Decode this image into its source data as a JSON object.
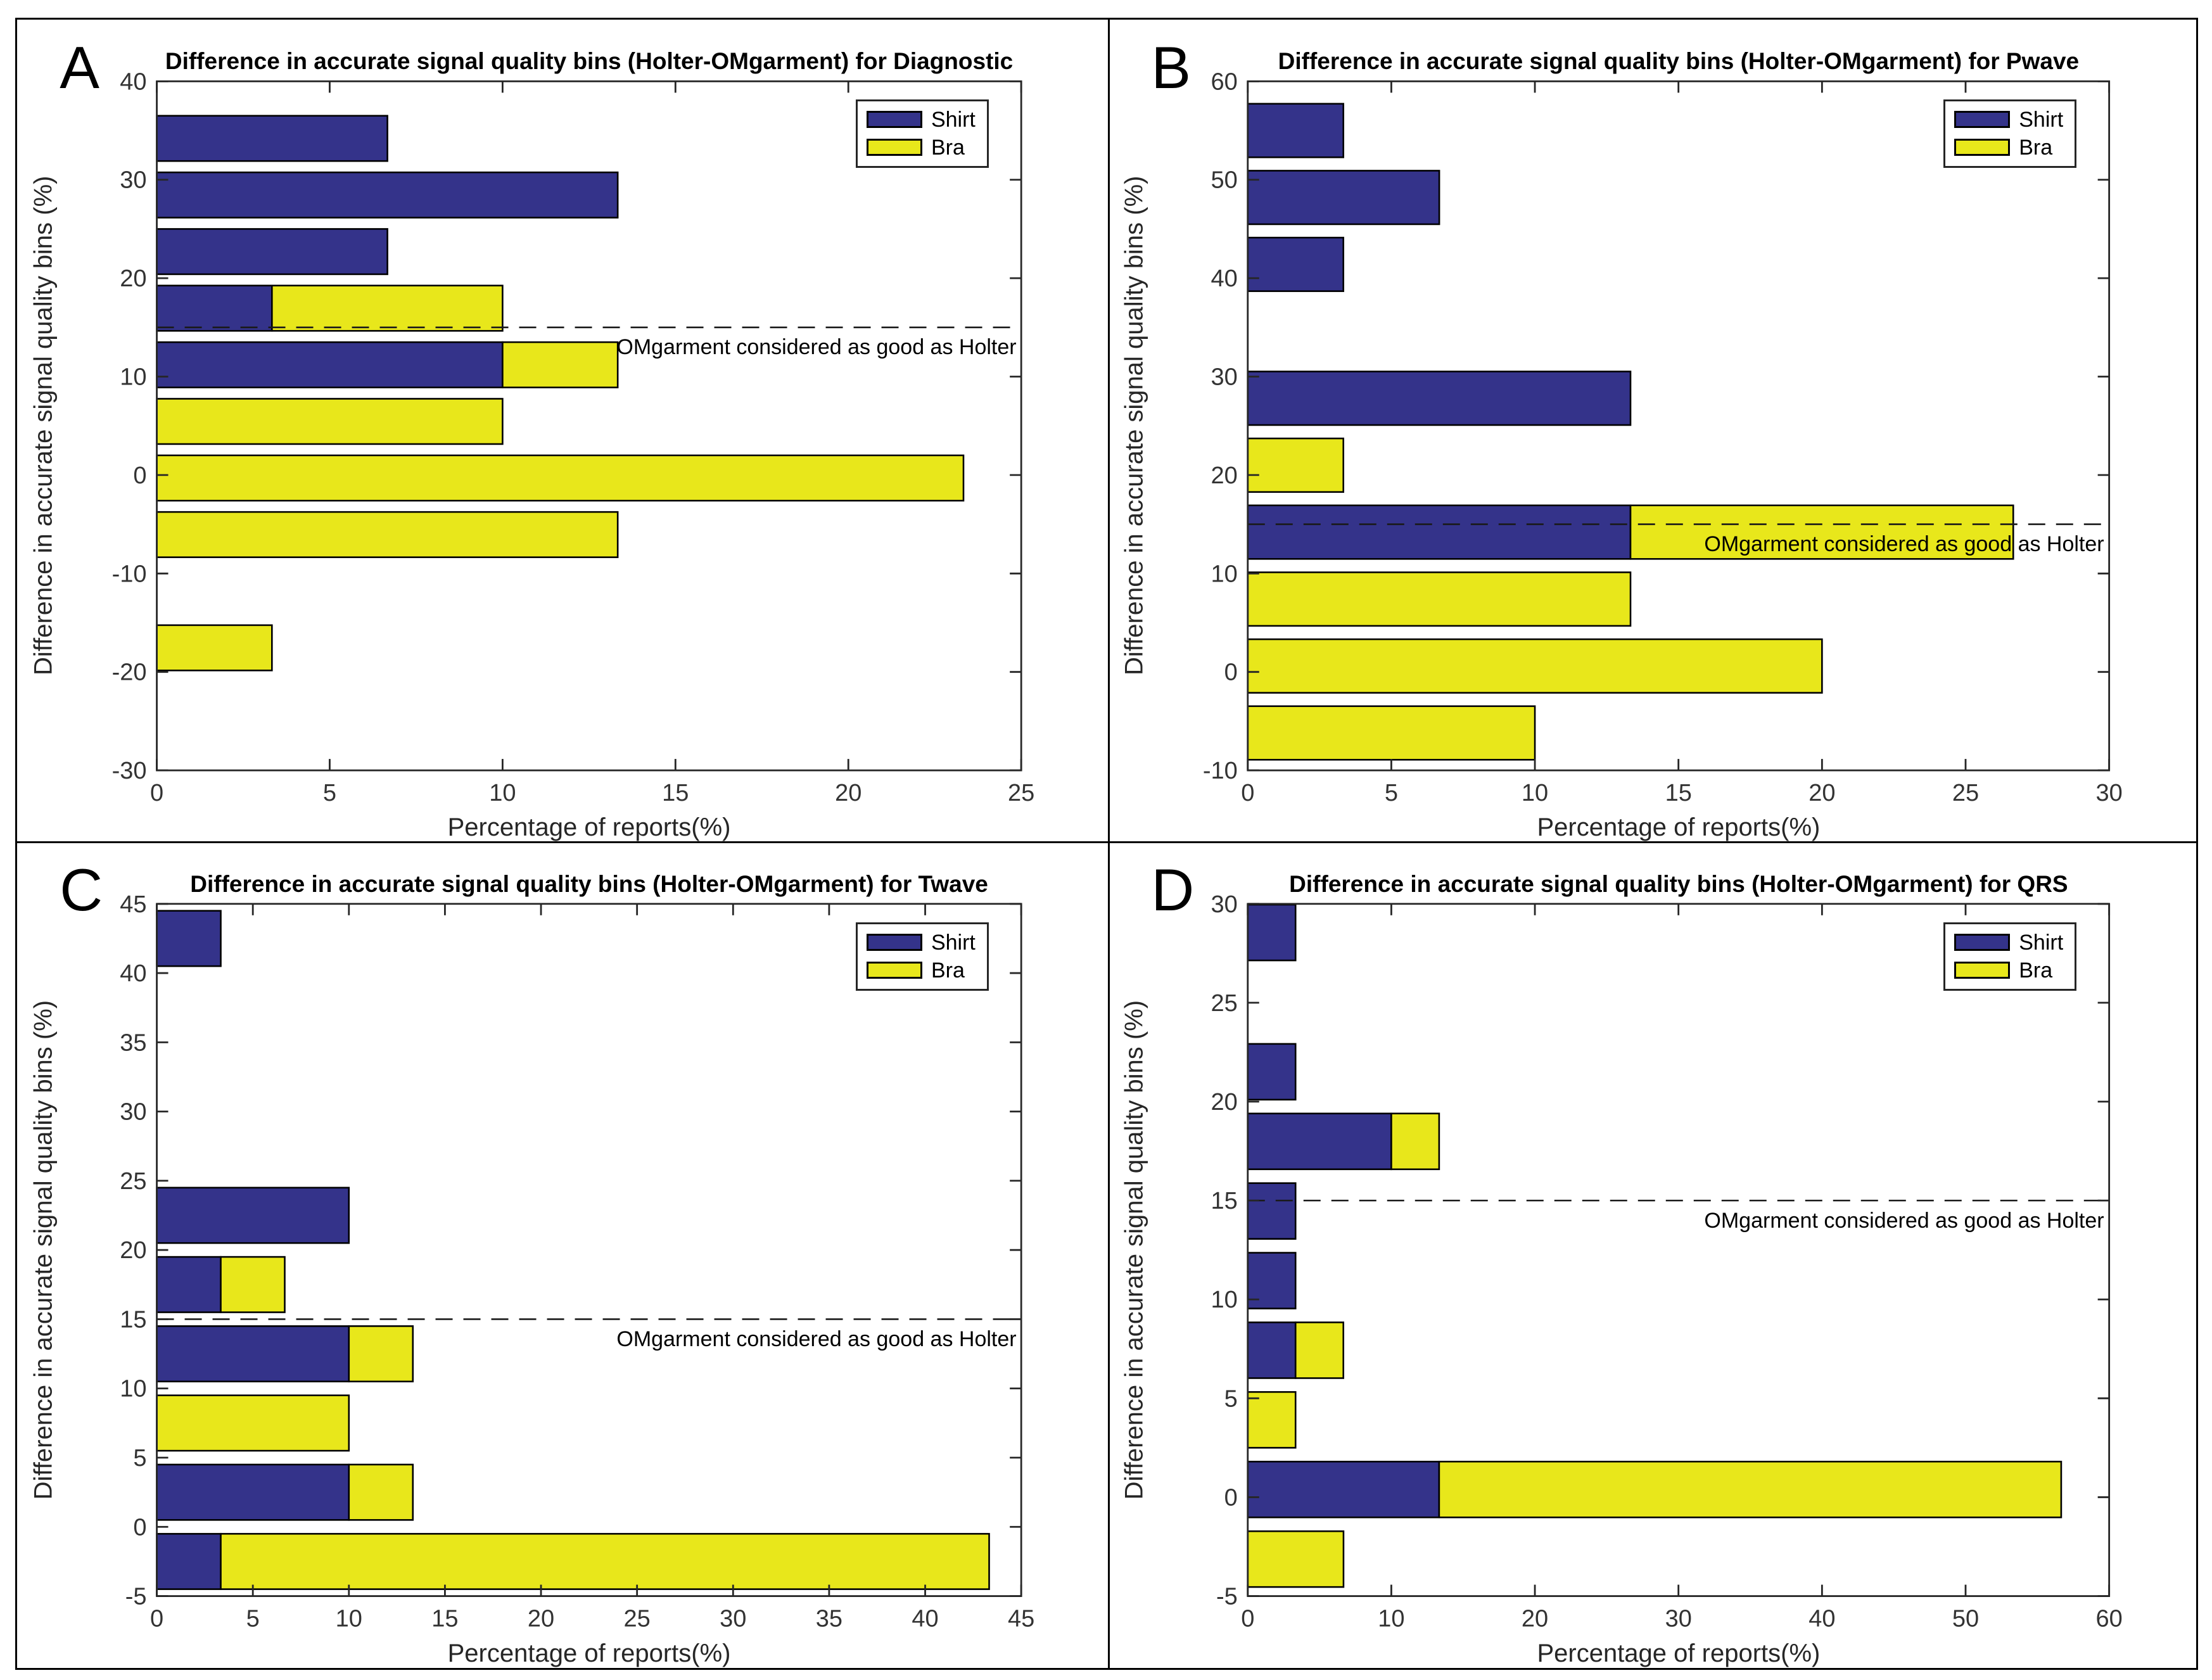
{
  "figure": {
    "background": "#ffffff",
    "outer_border": true,
    "layout": "2x2-panels"
  },
  "legend": {
    "shirt": "Shirt",
    "bra": "Bra",
    "position": "top-right-inside-plot"
  },
  "colors": {
    "shirt": "#34338A",
    "bra": "#E8E71B",
    "bar_edge": "#000000",
    "axis": "#262626",
    "tick_label": "#333333",
    "threshold_line": "#1a1a1a",
    "title_text": "#000000"
  },
  "chart_data": [
    {
      "panel": "A",
      "letter": "A",
      "type": "bar",
      "orientation": "horizontal",
      "grid": false,
      "title": "Difference in accurate signal quality bins (Holter-OMgarment) for Diagnostic",
      "xlabel": "Percentage of reports(%)",
      "ylabel": "Difference in accurate signal quality bins (%)",
      "xlim": [
        0,
        25
      ],
      "ylim": [
        -30,
        40
      ],
      "xticks": [
        0,
        5,
        10,
        15,
        20,
        25
      ],
      "yticks": [
        -30,
        -20,
        -10,
        0,
        10,
        20,
        30,
        40
      ],
      "bar_thickness": 4.6,
      "threshold": {
        "y": 15,
        "label": "OMgarment considered as good as Holter"
      },
      "series": [
        "Shirt",
        "Bra"
      ],
      "bars": [
        {
          "y": 34.2,
          "shirt": 6.67,
          "bra": 0
        },
        {
          "y": 28.45,
          "shirt": 13.33,
          "bra": 0
        },
        {
          "y": 22.7,
          "shirt": 6.67,
          "bra": 0
        },
        {
          "y": 16.95,
          "shirt": 3.33,
          "bra": 6.67
        },
        {
          "y": 11.2,
          "shirt": 10,
          "bra": 3.33
        },
        {
          "y": 5.45,
          "shirt": 0,
          "bra": 10
        },
        {
          "y": -0.3,
          "shirt": 0,
          "bra": 23.33
        },
        {
          "y": -6.05,
          "shirt": 0,
          "bra": 13.33
        },
        {
          "y": -17.55,
          "shirt": 0,
          "bra": 3.33
        }
      ]
    },
    {
      "panel": "B",
      "letter": "B",
      "type": "bar",
      "orientation": "horizontal",
      "grid": false,
      "title": "Difference in accurate signal quality bins (Holter-OMgarment) for Pwave",
      "xlabel": "Percentage of reports(%)",
      "ylabel": "Difference in accurate signal quality bins (%)",
      "xlim": [
        0,
        30
      ],
      "ylim": [
        -10,
        60
      ],
      "xticks": [
        0,
        5,
        10,
        15,
        20,
        25,
        30
      ],
      "yticks": [
        -10,
        0,
        10,
        20,
        30,
        40,
        50,
        60
      ],
      "bar_thickness": 5.44,
      "threshold": {
        "y": 15,
        "label": "OMgarment considered as good as Holter"
      },
      "series": [
        "Shirt",
        "Bra"
      ],
      "bars": [
        {
          "y": 55,
          "shirt": 3.33,
          "bra": 0
        },
        {
          "y": 48.2,
          "shirt": 6.67,
          "bra": 0
        },
        {
          "y": 41.4,
          "shirt": 3.33,
          "bra": 0
        },
        {
          "y": 27.8,
          "shirt": 13.33,
          "bra": 0
        },
        {
          "y": 21,
          "shirt": 0,
          "bra": 3.33
        },
        {
          "y": 14.2,
          "shirt": 13.33,
          "bra": 13.33
        },
        {
          "y": 7.4,
          "shirt": 0,
          "bra": 13.33
        },
        {
          "y": 0.6,
          "shirt": 0,
          "bra": 20
        },
        {
          "y": -6.2,
          "shirt": 0,
          "bra": 10
        }
      ]
    },
    {
      "panel": "C",
      "letter": "C",
      "type": "bar",
      "orientation": "horizontal",
      "grid": false,
      "title": "Difference in accurate signal quality bins (Holter-OMgarment) for Twave",
      "xlabel": "Percentage of reports(%)",
      "ylabel": "Difference in accurate signal quality bins (%)",
      "xlim": [
        0,
        45
      ],
      "ylim": [
        -5,
        45
      ],
      "xticks": [
        0,
        5,
        10,
        15,
        20,
        25,
        30,
        35,
        40,
        45
      ],
      "yticks": [
        -5,
        0,
        5,
        10,
        15,
        20,
        25,
        30,
        35,
        40,
        45
      ],
      "bar_thickness": 4,
      "threshold": {
        "y": 15,
        "label": "OMgarment considered as good as Holter"
      },
      "series": [
        "Shirt",
        "Bra"
      ],
      "bars": [
        {
          "y": 42.5,
          "shirt": 3.33,
          "bra": 0
        },
        {
          "y": 22.5,
          "shirt": 10,
          "bra": 0
        },
        {
          "y": 17.5,
          "shirt": 3.33,
          "bra": 3.33
        },
        {
          "y": 12.5,
          "shirt": 10,
          "bra": 3.33
        },
        {
          "y": 7.5,
          "shirt": 0,
          "bra": 10
        },
        {
          "y": 2.5,
          "shirt": 10,
          "bra": 3.33
        },
        {
          "y": -2.5,
          "shirt": 3.33,
          "bra": 40
        }
      ]
    },
    {
      "panel": "D",
      "letter": "D",
      "type": "bar",
      "orientation": "horizontal",
      "grid": false,
      "title": "Difference in accurate signal quality bins (Holter-OMgarment) for QRS",
      "xlabel": "Percentage of reports(%)",
      "ylabel": "Difference in accurate signal quality bins (%)",
      "xlim": [
        0,
        60
      ],
      "ylim": [
        -5,
        30
      ],
      "xticks": [
        0,
        10,
        20,
        30,
        40,
        50,
        60
      ],
      "yticks": [
        -5,
        0,
        5,
        10,
        15,
        20,
        25,
        30
      ],
      "bar_thickness": 2.82,
      "threshold": {
        "y": 15,
        "label": "OMgarment considered as good as Holter"
      },
      "series": [
        "Shirt",
        "Bra"
      ],
      "bars": [
        {
          "y": 28.55,
          "shirt": 3.33,
          "bra": 0
        },
        {
          "y": 21.51,
          "shirt": 3.33,
          "bra": 0
        },
        {
          "y": 17.99,
          "shirt": 10,
          "bra": 3.33
        },
        {
          "y": 14.47,
          "shirt": 3.33,
          "bra": 0
        },
        {
          "y": 10.95,
          "shirt": 3.33,
          "bra": 0
        },
        {
          "y": 7.43,
          "shirt": 3.33,
          "bra": 3.33
        },
        {
          "y": 3.91,
          "shirt": 0,
          "bra": 3.33
        },
        {
          "y": 0.39,
          "shirt": 13.33,
          "bra": 43.33
        },
        {
          "y": -3.13,
          "shirt": 0,
          "bra": 6.67
        }
      ]
    }
  ]
}
